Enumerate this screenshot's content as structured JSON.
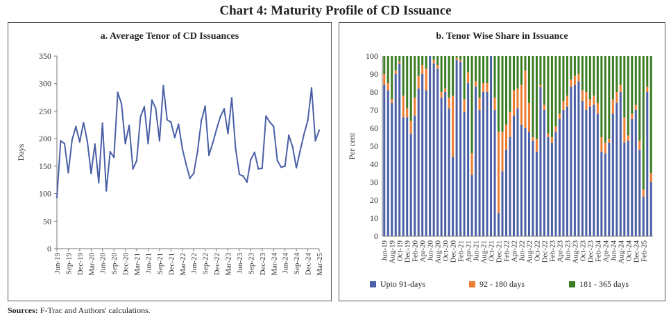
{
  "title": "Chart 4: Maturity Profile of CD Issuance",
  "source": {
    "label": "Sources:",
    "text": "F-Trac and Authors' calculations."
  },
  "chart_data": [
    {
      "type": "line",
      "title": "a. Average Tenor of CD Issuances",
      "ylabel": "Days",
      "xlabel": "",
      "ylim": [
        0,
        350
      ],
      "yticks": [
        0,
        50,
        100,
        150,
        200,
        250,
        300,
        350
      ],
      "xticklabels": [
        "Jun-19",
        "Sep-19",
        "Dec-19",
        "Mar-20",
        "Jun-20",
        "Sep-20",
        "Dec-20",
        "Mar-21",
        "Jun-21",
        "Sep-21",
        "Dec-21",
        "Mar-22",
        "Jun-22",
        "Sep-22",
        "Dec-22",
        "Mar-23",
        "Jun-23",
        "Sep-23",
        "Dec-23",
        "Mar-24",
        "Jun-24",
        "Sep-24",
        "Dec-24",
        "Mar-25"
      ],
      "color": "#4a5fa6",
      "values": [
        93,
        196,
        191,
        138,
        198,
        222,
        194,
        229,
        196,
        137,
        190,
        120,
        228,
        105,
        176,
        166,
        284,
        263,
        191,
        224,
        145,
        160,
        240,
        258,
        191,
        270,
        255,
        196,
        296,
        234,
        230,
        202,
        226,
        182,
        153,
        128,
        137,
        177,
        233,
        259,
        170,
        192,
        217,
        240,
        254,
        209,
        274,
        182,
        135,
        132,
        121,
        162,
        175,
        145,
        146,
        241,
        230,
        222,
        160,
        148,
        150,
        206,
        185,
        147,
        178,
        208,
        233,
        292,
        196,
        215
      ]
    },
    {
      "type": "bar",
      "stacked": true,
      "title": "b. Tenor Wise Share in Issuance",
      "ylabel": "Per cent",
      "ylim": [
        0,
        100
      ],
      "yticks": [
        0,
        10,
        20,
        30,
        40,
        50,
        60,
        70,
        80,
        90,
        100
      ],
      "xticklabels": [
        "Jun-19",
        "Aug-19",
        "Oct-19",
        "Dec-19",
        "Feb-20",
        "Apr-20",
        "Jun-20",
        "Aug-20",
        "Oct-20",
        "Dec-20",
        "Feb-21",
        "Apr-21",
        "Jun-21",
        "Aug-21",
        "Oct-21",
        "Dec-21",
        "Feb-22",
        "Apr-22",
        "Jun-22",
        "Aug-22",
        "Oct-22",
        "Dec-22",
        "Feb-23",
        "Apr-23",
        "Jun-23",
        "Aug-23",
        "Oct-23",
        "Dec-23",
        "Feb-24",
        "Apr-24",
        "Jun-24",
        "Aug-24",
        "Oct-24",
        "Dec-24",
        "Feb-25"
      ],
      "legend": [
        {
          "name": "Upto 91-days",
          "color": "#4a5fa6"
        },
        {
          "name": "92 - 180 days",
          "color": "#ed7d31"
        },
        {
          "name": "181 - 365 days",
          "color": "#3a7d23"
        }
      ],
      "series": [
        {
          "name": "Upto 91-days",
          "values": [
            84,
            81,
            74,
            90,
            96,
            66,
            66,
            57,
            67,
            82,
            90,
            81,
            100,
            96,
            93,
            77,
            80,
            71,
            44,
            98,
            97,
            69,
            85,
            34,
            83,
            70,
            80,
            80,
            100,
            70,
            13,
            36,
            48,
            55,
            67,
            71,
            62,
            60,
            58,
            53,
            47,
            83,
            70,
            55,
            52,
            58,
            65,
            70,
            72,
            83,
            84,
            86,
            75,
            70,
            72,
            73,
            68,
            47,
            46,
            52,
            68,
            74,
            80,
            52,
            53,
            65,
            70,
            48,
            22,
            80,
            30
          ]
        },
        {
          "name": "92 - 180 days",
          "values": [
            6,
            4,
            2,
            2,
            1,
            12,
            5,
            7,
            10,
            7,
            5,
            12,
            0,
            2,
            2,
            3,
            2,
            6,
            34,
            1,
            1,
            7,
            6,
            12,
            3,
            7,
            5,
            5,
            0,
            7,
            45,
            22,
            14,
            14,
            14,
            11,
            22,
            32,
            16,
            2,
            7,
            1,
            3,
            2,
            3,
            3,
            3,
            5,
            6,
            4,
            5,
            4,
            6,
            10,
            4,
            5,
            6,
            8,
            6,
            2,
            8,
            6,
            4,
            14,
            3,
            3,
            3,
            5,
            4,
            3,
            5
          ]
        }
      ]
    }
  ]
}
